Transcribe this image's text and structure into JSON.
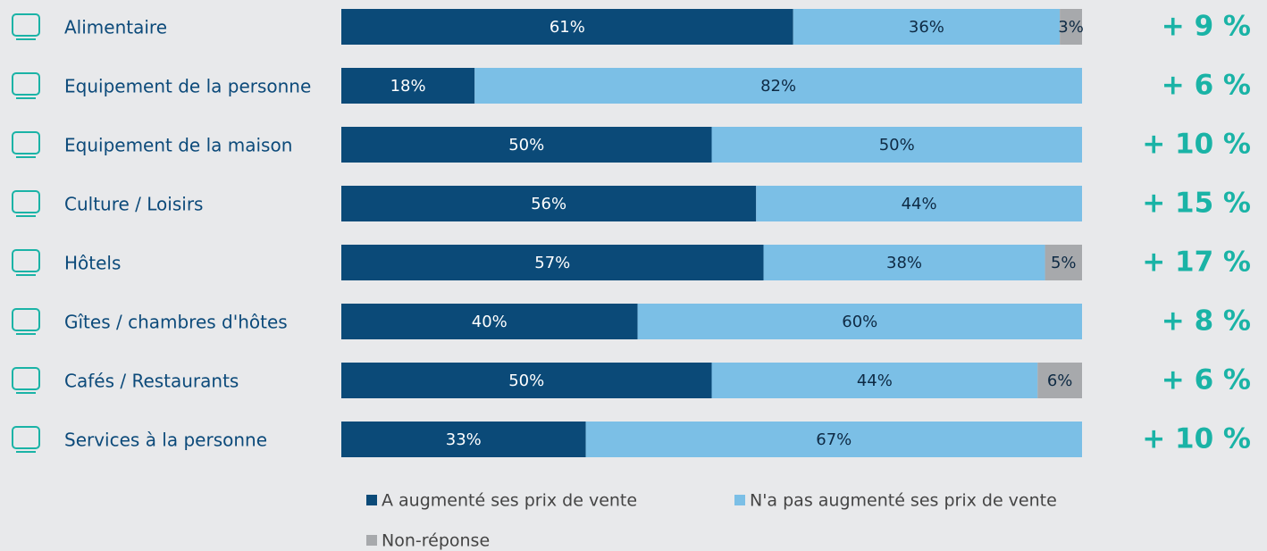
{
  "chart_data": {
    "type": "stacked-barh",
    "categories": [
      "Alimentaire",
      "Equipement de la personne",
      "Equipement de la maison",
      "Culture / Loisirs",
      "Hôtels",
      "Gîtes / chambres d'hôtes",
      "Cafés / Restaurants",
      "Services à la personne"
    ],
    "series": [
      {
        "name": "A augmenté ses prix de vente",
        "color": "#0b4a78",
        "values": [
          61,
          18,
          50,
          56,
          57,
          40,
          50,
          33
        ],
        "value_labels": [
          "61%",
          "18%",
          "50%",
          "56%",
          "57%",
          "40%",
          "50%",
          "33%"
        ]
      },
      {
        "name": "N'a pas augmenté ses prix de vente",
        "color": "#7bbfe6",
        "values": [
          36,
          82,
          50,
          44,
          38,
          60,
          44,
          67
        ],
        "value_labels": [
          "36%",
          "82%",
          "50%",
          "44%",
          "38%",
          "60%",
          "44%",
          "67%"
        ]
      },
      {
        "name": "Non-réponse",
        "color": "#a7a9ac",
        "values": [
          3,
          null,
          null,
          null,
          5,
          null,
          6,
          null
        ],
        "value_labels": [
          "3%",
          null,
          null,
          null,
          "5%",
          null,
          "6%",
          null
        ]
      }
    ],
    "annotations": [
      "+ 9 %",
      "+ 6 %",
      "+ 10 %",
      "+ 15 %",
      "+ 17 %",
      "+ 8 %",
      "+ 6 %",
      "+ 10 %"
    ],
    "xlim": [
      0,
      100
    ]
  }
}
